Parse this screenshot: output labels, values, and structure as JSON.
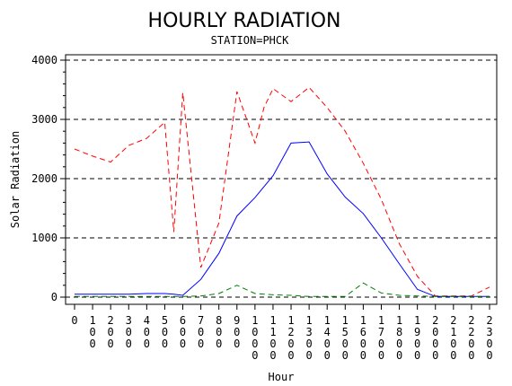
{
  "chart_data": {
    "type": "line",
    "title": "HOURLY RADIATION",
    "subtitle": "STATION=PHCK",
    "xlabel": "Hour",
    "ylabel": "Solar Radiation",
    "ylim": [
      0,
      4000
    ],
    "yticks": [
      0,
      1000,
      2000,
      3000,
      4000
    ],
    "grid": "horizontal-dashed",
    "x": [
      0,
      100,
      200,
      300,
      400,
      500,
      600,
      700,
      800,
      900,
      1000,
      1100,
      1200,
      1300,
      1400,
      1500,
      1600,
      1700,
      1800,
      1900,
      2000,
      2100,
      2200,
      2300
    ],
    "xtick_labels": [
      "0",
      "100",
      "200",
      "300",
      "400",
      "500",
      "600",
      "700",
      "800",
      "900",
      "1000",
      "1100",
      "1200",
      "1300",
      "1400",
      "1500",
      "1600",
      "1700",
      "1800",
      "1900",
      "2000",
      "2100",
      "2200",
      "2300"
    ],
    "series": [
      {
        "color": "#ff0000",
        "style": "dashed",
        "x": [
          0,
          100,
          200,
          300,
          400,
          500,
          550,
          600,
          700,
          800,
          900,
          1000,
          1050,
          1100,
          1200,
          1300,
          1400,
          1500,
          1600,
          1700,
          1800,
          1900,
          2000,
          2100,
          2200,
          2300
        ],
        "values": [
          2500,
          2380,
          2280,
          2560,
          2680,
          2950,
          1100,
          3450,
          500,
          1250,
          3470,
          2600,
          3200,
          3520,
          3300,
          3540,
          3200,
          2800,
          2260,
          1650,
          900,
          350,
          20,
          20,
          20,
          170
        ]
      },
      {
        "color": "#0000ff",
        "style": "solid",
        "x": [
          0,
          100,
          200,
          300,
          400,
          500,
          550,
          600,
          700,
          800,
          900,
          1000,
          1100,
          1200,
          1300,
          1400,
          1500,
          1600,
          1700,
          1800,
          1900,
          2000,
          2100,
          2200,
          2300
        ],
        "values": [
          50,
          50,
          50,
          50,
          60,
          60,
          50,
          30,
          300,
          740,
          1370,
          1680,
          2050,
          2600,
          2620,
          2080,
          1690,
          1410,
          1000,
          560,
          130,
          10,
          10,
          10,
          10
        ]
      },
      {
        "color": "#008000",
        "style": "dashed",
        "x": [
          0,
          100,
          200,
          300,
          400,
          500,
          600,
          700,
          800,
          900,
          1000,
          1100,
          1200,
          1300,
          1400,
          1500,
          1600,
          1700,
          1800,
          1900,
          2000,
          2100,
          2200,
          2300
        ],
        "values": [
          10,
          10,
          10,
          10,
          10,
          10,
          10,
          20,
          60,
          200,
          60,
          40,
          30,
          10,
          10,
          10,
          240,
          70,
          30,
          20,
          10,
          10,
          10,
          10
        ]
      }
    ]
  }
}
